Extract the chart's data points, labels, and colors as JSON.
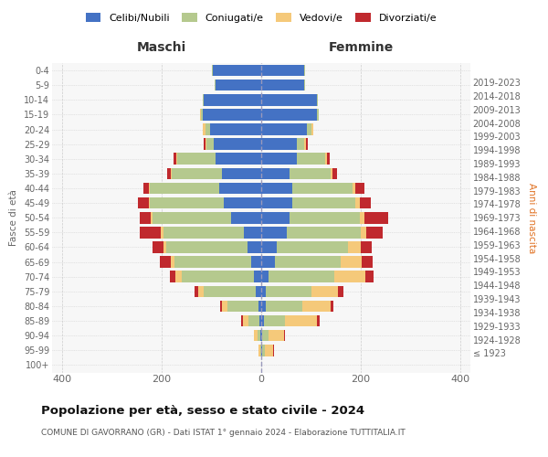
{
  "age_groups": [
    "100+",
    "95-99",
    "90-94",
    "85-89",
    "80-84",
    "75-79",
    "70-74",
    "65-69",
    "60-64",
    "55-59",
    "50-54",
    "45-49",
    "40-44",
    "35-39",
    "30-34",
    "25-29",
    "20-24",
    "15-19",
    "10-14",
    "5-9",
    "0-4"
  ],
  "birth_years": [
    "≤ 1923",
    "1924-1928",
    "1929-1933",
    "1934-1938",
    "1939-1943",
    "1944-1948",
    "1949-1953",
    "1954-1958",
    "1959-1963",
    "1964-1968",
    "1969-1973",
    "1974-1978",
    "1979-1983",
    "1984-1988",
    "1989-1993",
    "1994-1998",
    "1999-2003",
    "2004-2008",
    "2009-2013",
    "2014-2018",
    "2019-2023"
  ],
  "maschi": {
    "celibi": [
      0,
      0,
      1,
      3,
      5,
      10,
      15,
      20,
      28,
      35,
      60,
      75,
      85,
      78,
      92,
      95,
      102,
      118,
      116,
      92,
      97
    ],
    "coniugati": [
      0,
      2,
      6,
      22,
      62,
      105,
      145,
      155,
      162,
      162,
      158,
      148,
      138,
      102,
      77,
      15,
      10,
      2,
      2,
      2,
      1
    ],
    "vedovi": [
      0,
      3,
      7,
      12,
      12,
      12,
      12,
      6,
      6,
      4,
      4,
      3,
      2,
      2,
      1,
      2,
      6,
      2,
      0,
      0,
      0
    ],
    "divorziati": [
      0,
      0,
      0,
      3,
      3,
      6,
      12,
      22,
      22,
      42,
      22,
      22,
      12,
      6,
      6,
      3,
      0,
      0,
      0,
      0,
      0
    ]
  },
  "femmine": {
    "nubili": [
      0,
      2,
      2,
      5,
      10,
      10,
      15,
      28,
      32,
      52,
      57,
      62,
      62,
      57,
      72,
      72,
      92,
      112,
      112,
      87,
      87
    ],
    "coniugate": [
      0,
      5,
      12,
      42,
      72,
      92,
      132,
      132,
      142,
      148,
      142,
      127,
      122,
      82,
      57,
      15,
      10,
      3,
      2,
      2,
      1
    ],
    "vedove": [
      0,
      17,
      32,
      65,
      57,
      52,
      62,
      42,
      27,
      12,
      9,
      9,
      6,
      4,
      3,
      3,
      3,
      0,
      0,
      0,
      0
    ],
    "divorziate": [
      0,
      2,
      2,
      6,
      6,
      12,
      17,
      22,
      22,
      32,
      47,
      22,
      17,
      9,
      6,
      3,
      0,
      0,
      0,
      0,
      0
    ]
  },
  "colors": {
    "celibi": "#4472c4",
    "coniugati": "#b5c98e",
    "vedovi": "#f5c97a",
    "divorziati": "#c0292e"
  },
  "xlim": 420,
  "title": "Popolazione per età, sesso e stato civile - 2024",
  "subtitle": "COMUNE DI GAVORRANO (GR) - Dati ISTAT 1° gennaio 2024 - Elaborazione TUTTITALIA.IT",
  "ylabel": "Fasce di età",
  "ylabel_right": "Anni di nascita",
  "xlabel_left": "Maschi",
  "xlabel_right": "Femmine"
}
